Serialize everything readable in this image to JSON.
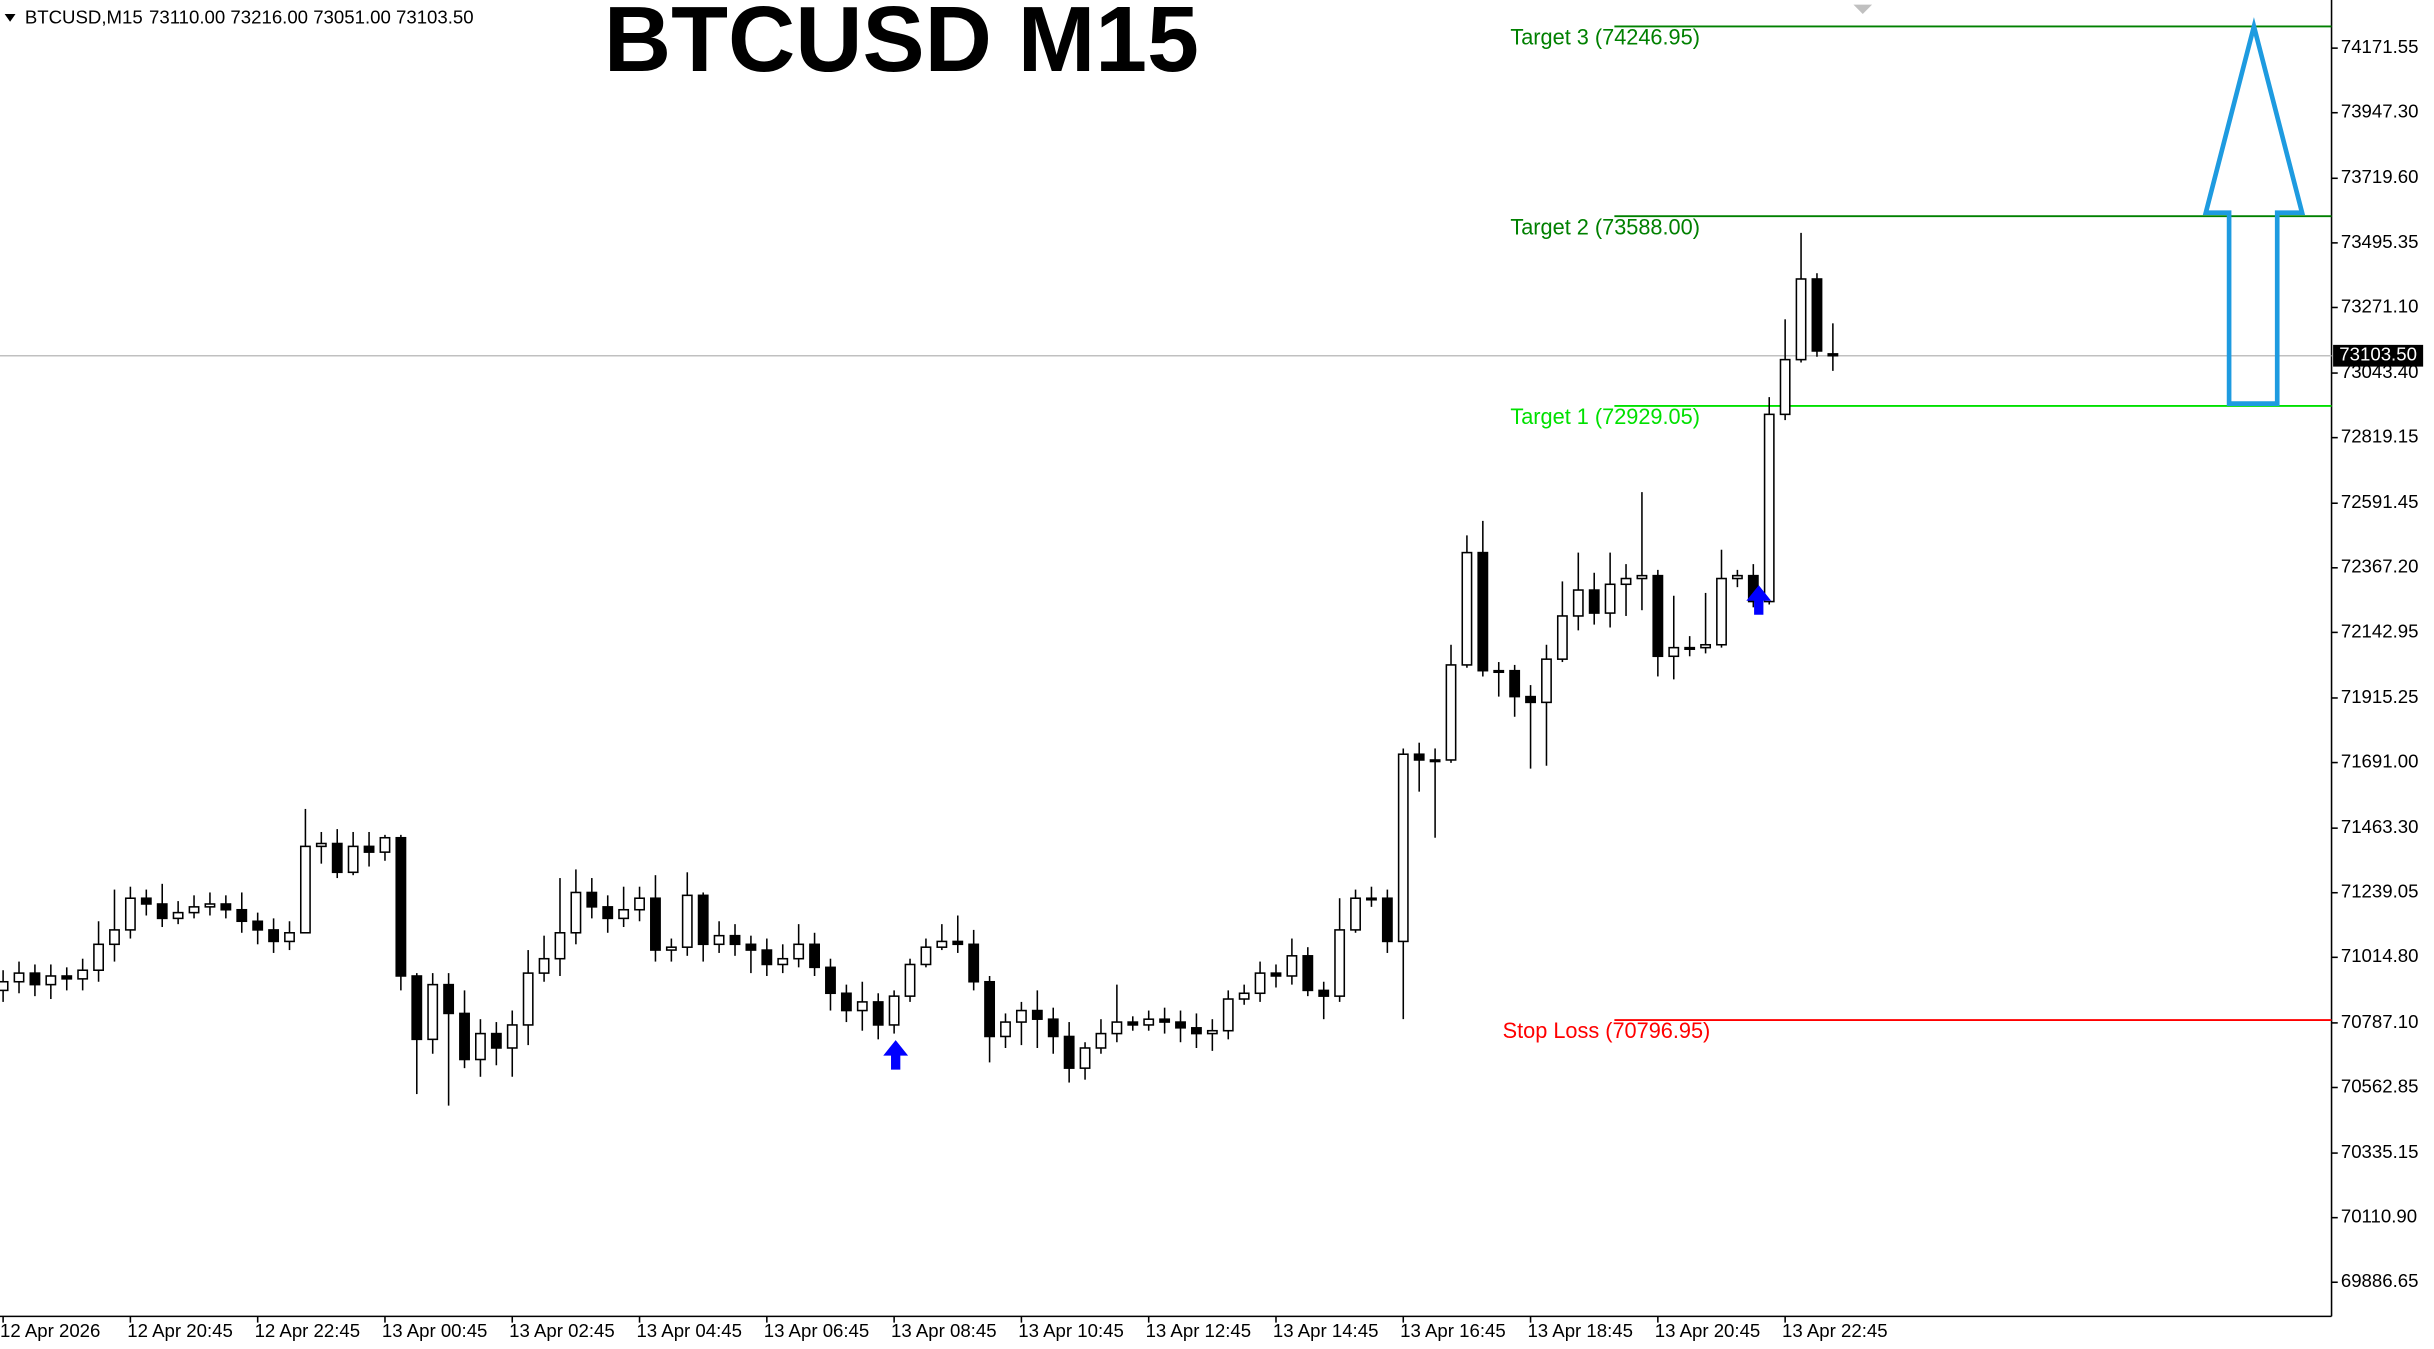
{
  "chart_data": {
    "type": "candlestick",
    "title": "BTCUSD M15",
    "symbol_info": "BTCUSD,M15",
    "ohlc_text": "73110.00 73216.00 73051.00 73103.50",
    "categories": [
      "12 Apr 2026",
      null,
      null,
      null,
      null,
      null,
      null,
      null,
      "12 Apr 20:45",
      null,
      null,
      null,
      null,
      null,
      null,
      null,
      "12 Apr 22:45",
      null,
      null,
      null,
      null,
      null,
      null,
      null,
      "13 Apr 00:45",
      null,
      null,
      null,
      null,
      null,
      null,
      null,
      "13 Apr 02:45",
      null,
      null,
      null,
      null,
      null,
      null,
      null,
      "13 Apr 04:45",
      null,
      null,
      null,
      null,
      null,
      null,
      null,
      "13 Apr 06:45",
      null,
      null,
      null,
      null,
      null,
      null,
      null,
      "13 Apr 08:45",
      null,
      null,
      null,
      null,
      null,
      null,
      null,
      "13 Apr 10:45",
      null,
      null,
      null,
      null,
      null,
      null,
      null,
      "13 Apr 12:45",
      null,
      null,
      null,
      null,
      null,
      null,
      null,
      "13 Apr 14:45",
      null,
      null,
      null,
      null,
      null,
      null,
      null,
      "13 Apr 16:45",
      null,
      null,
      null,
      null,
      null,
      null,
      null,
      "13 Apr 18:45",
      null,
      null,
      null,
      null,
      null,
      null,
      null,
      "13 Apr 20:45",
      null,
      null,
      null,
      null,
      null,
      null,
      null,
      "13 Apr 22:45",
      null,
      null,
      null
    ],
    "open": [
      70900,
      70930,
      70960,
      70920,
      70950,
      70940,
      70970,
      71060,
      71110,
      71220,
      71200,
      71150,
      71170,
      71190,
      71200,
      71180,
      71140,
      71110,
      71070,
      71100,
      71400,
      71410,
      71310,
      71400,
      71380,
      71430,
      70950,
      70730,
      70920,
      70820,
      70660,
      70750,
      70700,
      70780,
      70960,
      71010,
      71100,
      71240,
      71190,
      71150,
      71180,
      71220,
      71040,
      71050,
      71230,
      71060,
      71090,
      71060,
      71040,
      70990,
      71010,
      71060,
      70980,
      70890,
      70830,
      70860,
      70780,
      70880,
      70990,
      71050,
      71070,
      71060,
      70930,
      70740,
      70790,
      70830,
      70800,
      70740,
      70630,
      70700,
      70750,
      70790,
      70780,
      70800,
      70790,
      70770,
      70750,
      70760,
      70870,
      70890,
      70960,
      70950,
      71020,
      70900,
      70880,
      71110,
      71220,
      71220,
      71070,
      71720,
      71700,
      71700,
      72030,
      72420,
      72010,
      72010,
      71920,
      71900,
      72050,
      72200,
      72290,
      72210,
      72310,
      72330,
      72340,
      72060,
      72090,
      72090,
      72100,
      72330,
      72340,
      72250,
      72900,
      73090,
      73370,
      73110
    ],
    "high": [
      70970,
      71000,
      70990,
      70990,
      70980,
      71010,
      71140,
      71250,
      71260,
      71250,
      71270,
      71210,
      71230,
      71240,
      71230,
      71240,
      71170,
      71150,
      71140,
      71530,
      71450,
      71460,
      71450,
      71450,
      71440,
      71440,
      70960,
      70960,
      70960,
      70900,
      70800,
      70790,
      70830,
      71040,
      71090,
      71290,
      71320,
      71290,
      71230,
      71260,
      71260,
      71300,
      71080,
      71310,
      71240,
      71140,
      71130,
      71090,
      71080,
      71060,
      71130,
      71100,
      71010,
      70920,
      70930,
      70890,
      70900,
      71010,
      71080,
      71130,
      71160,
      71110,
      70950,
      70820,
      70860,
      70900,
      70840,
      70790,
      70720,
      70800,
      70920,
      70810,
      70830,
      70840,
      70830,
      70820,
      70800,
      70900,
      70920,
      71000,
      70990,
      71080,
      71050,
      70930,
      71220,
      71250,
      71260,
      71250,
      71740,
      71760,
      71740,
      72100,
      72480,
      72530,
      72040,
      72030,
      71960,
      72100,
      72320,
      72420,
      72350,
      72420,
      72380,
      72630,
      72360,
      72270,
      72130,
      72280,
      72430,
      72360,
      72380,
      72960,
      73230,
      73530,
      73390,
      73216
    ],
    "low": [
      70860,
      70890,
      70880,
      70870,
      70900,
      70900,
      70930,
      71000,
      71080,
      71160,
      71120,
      71130,
      71150,
      71160,
      71150,
      71100,
      71060,
      71030,
      71040,
      71100,
      71340,
      71290,
      71300,
      71330,
      71350,
      70900,
      70540,
      70680,
      70500,
      70630,
      70600,
      70640,
      70600,
      70710,
      70930,
      70950,
      71060,
      71150,
      71100,
      71120,
      71140,
      71000,
      71000,
      71020,
      71000,
      71030,
      71020,
      70960,
      70950,
      70960,
      70980,
      70950,
      70830,
      70790,
      70760,
      70730,
      70750,
      70860,
      70980,
      71040,
      71030,
      70900,
      70650,
      70700,
      70710,
      70700,
      70680,
      70580,
      70590,
      70680,
      70720,
      70760,
      70760,
      70750,
      70720,
      70700,
      70690,
      70730,
      70850,
      70860,
      70910,
      70920,
      70880,
      70800,
      70860,
      71100,
      71190,
      71030,
      70800,
      71590,
      71430,
      71690,
      72020,
      71990,
      71920,
      71850,
      71670,
      71680,
      72040,
      72150,
      72170,
      72160,
      72200,
      72220,
      71990,
      71980,
      72060,
      72070,
      72090,
      72300,
      72230,
      72240,
      72880,
      73080,
      73100,
      73051
    ],
    "close": [
      70930,
      70960,
      70920,
      70950,
      70940,
      70970,
      71060,
      71110,
      71220,
      71200,
      71150,
      71170,
      71190,
      71200,
      71180,
      71140,
      71110,
      71070,
      71100,
      71400,
      71410,
      71310,
      71400,
      71380,
      71430,
      70950,
      70730,
      70920,
      70820,
      70660,
      70750,
      70700,
      70780,
      70960,
      71010,
      71100,
      71240,
      71190,
      71150,
      71180,
      71220,
      71040,
      71050,
      71230,
      71060,
      71090,
      71060,
      71040,
      70990,
      71010,
      71060,
      70980,
      70890,
      70830,
      70860,
      70780,
      70880,
      70990,
      71050,
      71070,
      71060,
      70930,
      70740,
      70790,
      70830,
      70800,
      70740,
      70630,
      70700,
      70750,
      70790,
      70780,
      70800,
      70790,
      70770,
      70750,
      70760,
      70870,
      70890,
      70960,
      70950,
      71020,
      70900,
      70880,
      71110,
      71220,
      71220,
      71070,
      71720,
      71700,
      71700,
      72030,
      72420,
      72010,
      72010,
      71920,
      71900,
      72050,
      72200,
      72290,
      72210,
      72310,
      72330,
      72340,
      72060,
      72090,
      72090,
      72100,
      72330,
      72340,
      72250,
      72900,
      73090,
      73370,
      73120,
      73103.5
    ],
    "up_color": "#ffffff",
    "down_color": "#000000",
    "ylim": [
      69768.07,
      74338.64
    ],
    "yticks": [
      74171.55,
      {
        "value": 73947.3,
        "label": "73947.30"
      },
      {
        "value": 73719.6,
        "label": "73719.60"
      },
      73495.35,
      {
        "value": 73271.1,
        "label": "73271.10"
      },
      {
        "value": 73043.4,
        "label": "73043.40"
      },
      72819.15,
      72591.45,
      {
        "value": 72367.2,
        "label": "72367.20"
      },
      72142.95,
      71915.25,
      {
        "value": 71691,
        "label": "71691.00"
      },
      {
        "value": 71463.3,
        "label": "71463.30"
      },
      71239.05,
      {
        "value": 71014.8,
        "label": "71014.80"
      },
      {
        "value": 70787.1,
        "label": "70787.10"
      },
      70562.85,
      70335.15,
      {
        "value": 70110.9,
        "label": "70110.90"
      },
      69886.65
    ],
    "last_price": {
      "value": 73103.5,
      "label": "73103.50"
    },
    "levels": [
      {
        "label": "Target 3 (74246.95)",
        "value": 74246.95,
        "color": "#008000"
      },
      {
        "label": "Target 2 (73588.00)",
        "value": 73588,
        "color": "#008000"
      },
      {
        "label": "Target 1 (72929.05)",
        "value": 72929.05,
        "color": "#00e000"
      },
      {
        "label": "Stop Loss (70796.95)",
        "value": 70796.95,
        "color": "#ff0000"
      }
    ]
  }
}
